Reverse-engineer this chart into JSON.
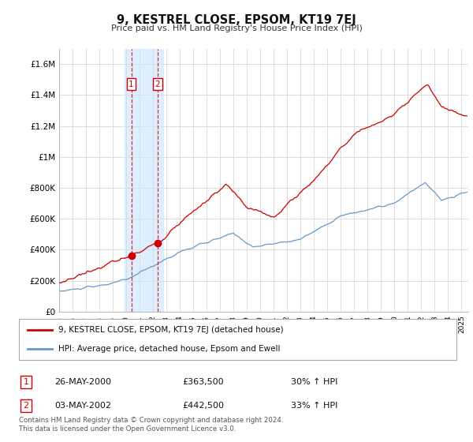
{
  "title": "9, KESTREL CLOSE, EPSOM, KT19 7EJ",
  "subtitle": "Price paid vs. HM Land Registry's House Price Index (HPI)",
  "ylabel_ticks": [
    "£0",
    "£200K",
    "£400K",
    "£600K",
    "£800K",
    "£1M",
    "£1.2M",
    "£1.4M",
    "£1.6M"
  ],
  "ytick_values": [
    0,
    200000,
    400000,
    600000,
    800000,
    1000000,
    1200000,
    1400000,
    1600000
  ],
  "ylim": [
    0,
    1700000
  ],
  "xlim_start": 1995.0,
  "xlim_end": 2025.5,
  "red_line_color": "#cc0000",
  "blue_line_color": "#6699cc",
  "highlight_box_color": "#ddeeff",
  "sale1_x": 2000.38,
  "sale1_y": 363500,
  "sale2_x": 2002.33,
  "sale2_y": 442500,
  "highlight_x1": 1999.85,
  "highlight_x2": 2002.75,
  "legend_label_red": "9, KESTREL CLOSE, EPSOM, KT19 7EJ (detached house)",
  "legend_label_blue": "HPI: Average price, detached house, Epsom and Ewell",
  "table_rows": [
    {
      "num": "1",
      "date": "26-MAY-2000",
      "price": "£363,500",
      "change": "30% ↑ HPI"
    },
    {
      "num": "2",
      "date": "03-MAY-2002",
      "price": "£442,500",
      "change": "33% ↑ HPI"
    }
  ],
  "footer": "Contains HM Land Registry data © Crown copyright and database right 2024.\nThis data is licensed under the Open Government Licence v3.0.",
  "background_color": "#ffffff",
  "grid_color": "#dddddd"
}
